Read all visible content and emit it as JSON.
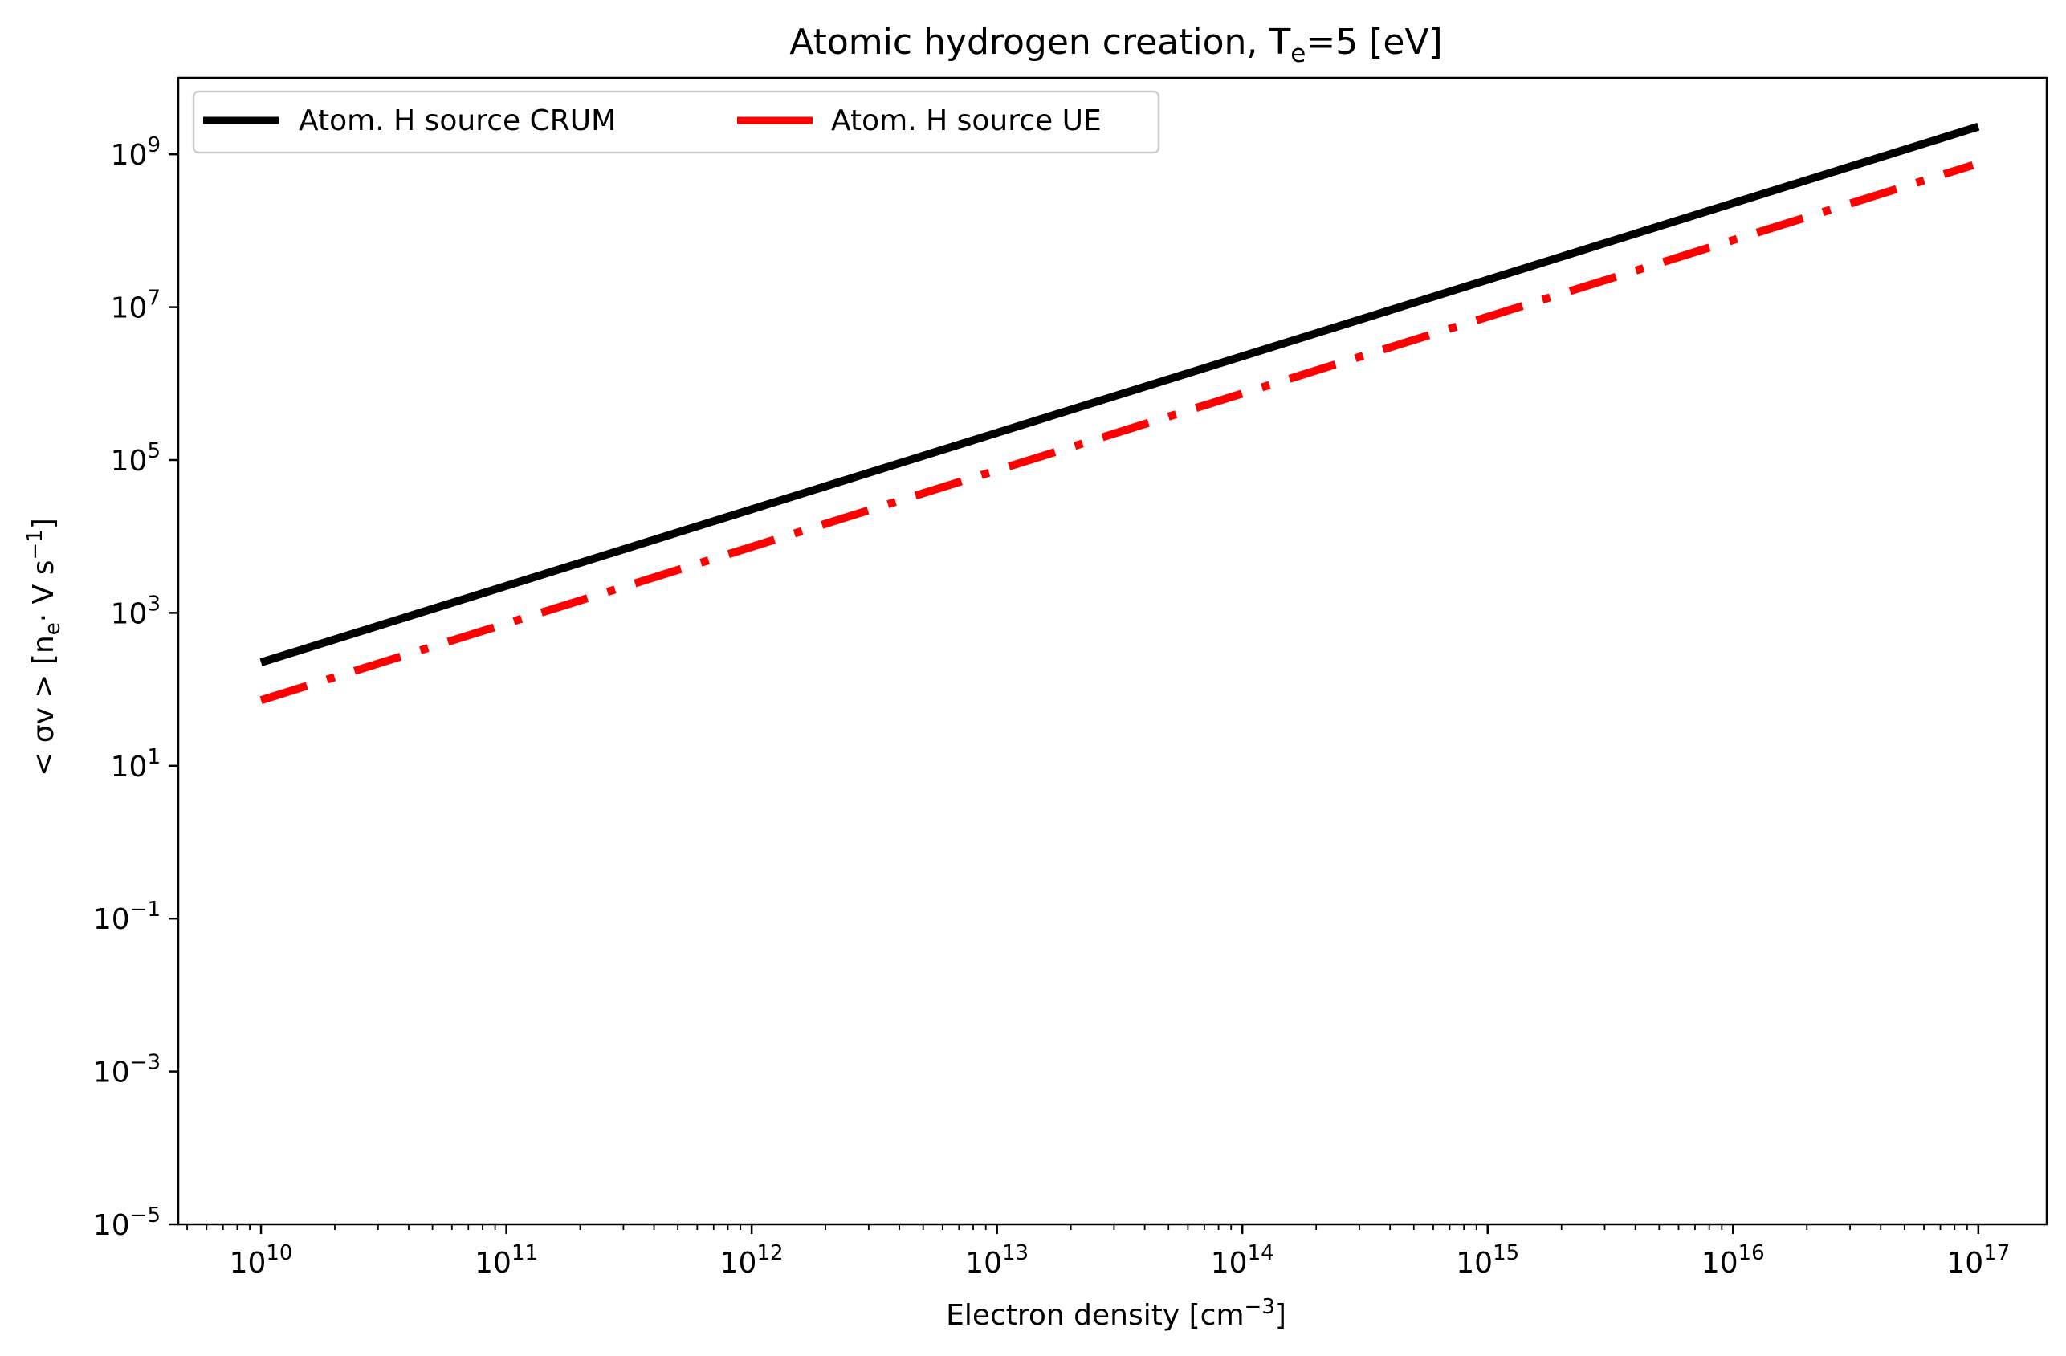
{
  "chart_data": {
    "type": "line",
    "title": {
      "main": "Atomic hydrogen creation, T",
      "sub": "e",
      "rest": "=5 [eV]"
    },
    "xlabel": {
      "main": "Electron density [cm",
      "sup": "−3",
      "rest": "]"
    },
    "ylabel": {
      "pre": "< σv >  [n",
      "sub": "e",
      "mid": "· V   s",
      "sup": "−1",
      "rest": "]"
    },
    "x_scale": "log",
    "y_scale": "log",
    "xlim": [
      4600000000.0,
      1.9e+17
    ],
    "ylim": [
      1e-05,
      10000000000.0
    ],
    "x_ticks": [
      {
        "base": "10",
        "exp": "10",
        "value": 10000000000.0
      },
      {
        "base": "10",
        "exp": "11",
        "value": 100000000000.0
      },
      {
        "base": "10",
        "exp": "12",
        "value": 1000000000000.0
      },
      {
        "base": "10",
        "exp": "13",
        "value": 10000000000000.0
      },
      {
        "base": "10",
        "exp": "14",
        "value": 100000000000000.0
      },
      {
        "base": "10",
        "exp": "15",
        "value": 1000000000000000.0
      },
      {
        "base": "10",
        "exp": "16",
        "value": 1e+16
      },
      {
        "base": "10",
        "exp": "17",
        "value": 1e+17
      }
    ],
    "y_ticks": [
      {
        "base": "10",
        "exp": "−5",
        "value": 1e-05
      },
      {
        "base": "10",
        "exp": "−3",
        "value": 0.001
      },
      {
        "base": "10",
        "exp": "−1",
        "value": 0.1
      },
      {
        "base": "10",
        "exp": "1",
        "value": 10.0
      },
      {
        "base": "10",
        "exp": "3",
        "value": 1000.0
      },
      {
        "base": "10",
        "exp": "5",
        "value": 100000.0
      },
      {
        "base": "10",
        "exp": "7",
        "value": 10000000.0
      },
      {
        "base": "10",
        "exp": "9",
        "value": 1000000000.0
      }
    ],
    "grid": false,
    "legend": {
      "position": "top-left",
      "columns": 2
    },
    "series": [
      {
        "name": "Atom. H source CRUM",
        "color": "#000000",
        "style": "solid",
        "x": [
          10000000000.0,
          1e+17
        ],
        "y": [
          225,
          2300000000.0
        ]
      },
      {
        "name": "Atom. H source UE",
        "color": "#ff0000",
        "style": "dashdot",
        "x": [
          10000000000.0,
          9.5e+16
        ],
        "y": [
          72,
          720000000.0
        ]
      }
    ]
  }
}
